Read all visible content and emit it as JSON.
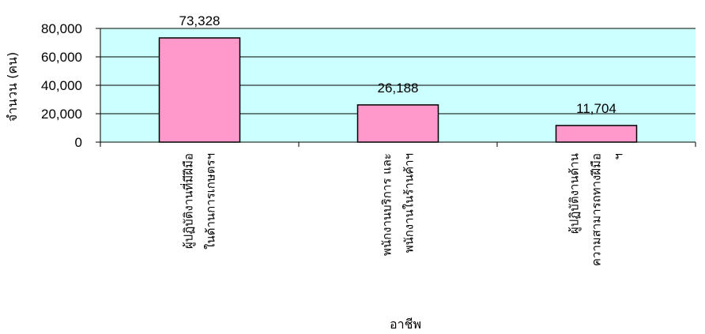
{
  "chart_data": {
    "type": "bar",
    "categories": [
      [
        "ผู้ปฏิบัติงานที่มีฝีมือ",
        "ในด้านการเกษตรฯ"
      ],
      [
        "พนักงานบริการ และ",
        "พนักงานในร้านค้าฯ"
      ],
      [
        "ผู้ปฏิบัติงานด้าน",
        "ความสามารถทางฝีมือ",
        "ฯ"
      ]
    ],
    "values": [
      73328,
      26188,
      11704
    ],
    "value_labels": [
      "73,328",
      "26,188",
      "11,704"
    ],
    "title": "",
    "xlabel": "อาชีพ",
    "ylabel": "จำนวน (คน)",
    "ylim": [
      0,
      80000
    ],
    "yticks": [
      0,
      20000,
      40000,
      60000,
      80000
    ],
    "ytick_labels": [
      "0",
      "20,000",
      "40,000",
      "60,000",
      "80,000"
    ],
    "grid": true,
    "legend": "none",
    "colors": {
      "plot_background": "#ccffff",
      "bar_fill": "#ff99cc",
      "bar_stroke": "#000000",
      "gridline": "#000000"
    }
  }
}
